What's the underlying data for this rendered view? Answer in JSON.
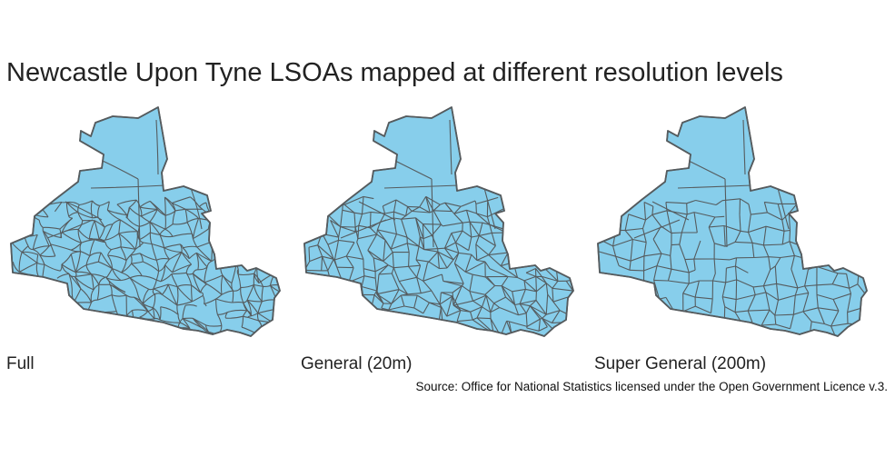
{
  "title": "Newcastle Upon Tyne LSOAs mapped at different resolution levels",
  "panels": [
    {
      "label": "Full",
      "detail": "full",
      "fill_color": "#87ceeb",
      "border_color": "#555b5e"
    },
    {
      "label": "General (20m)",
      "detail": "general",
      "fill_color": "#87ceeb",
      "border_color": "#555b5e"
    },
    {
      "label": "Super General (200m)",
      "detail": "super-general",
      "fill_color": "#87ceeb",
      "border_color": "#555b5e"
    }
  ],
  "source": "Source: Office for National Statistics licensed under the Open Government Licence v.3."
}
